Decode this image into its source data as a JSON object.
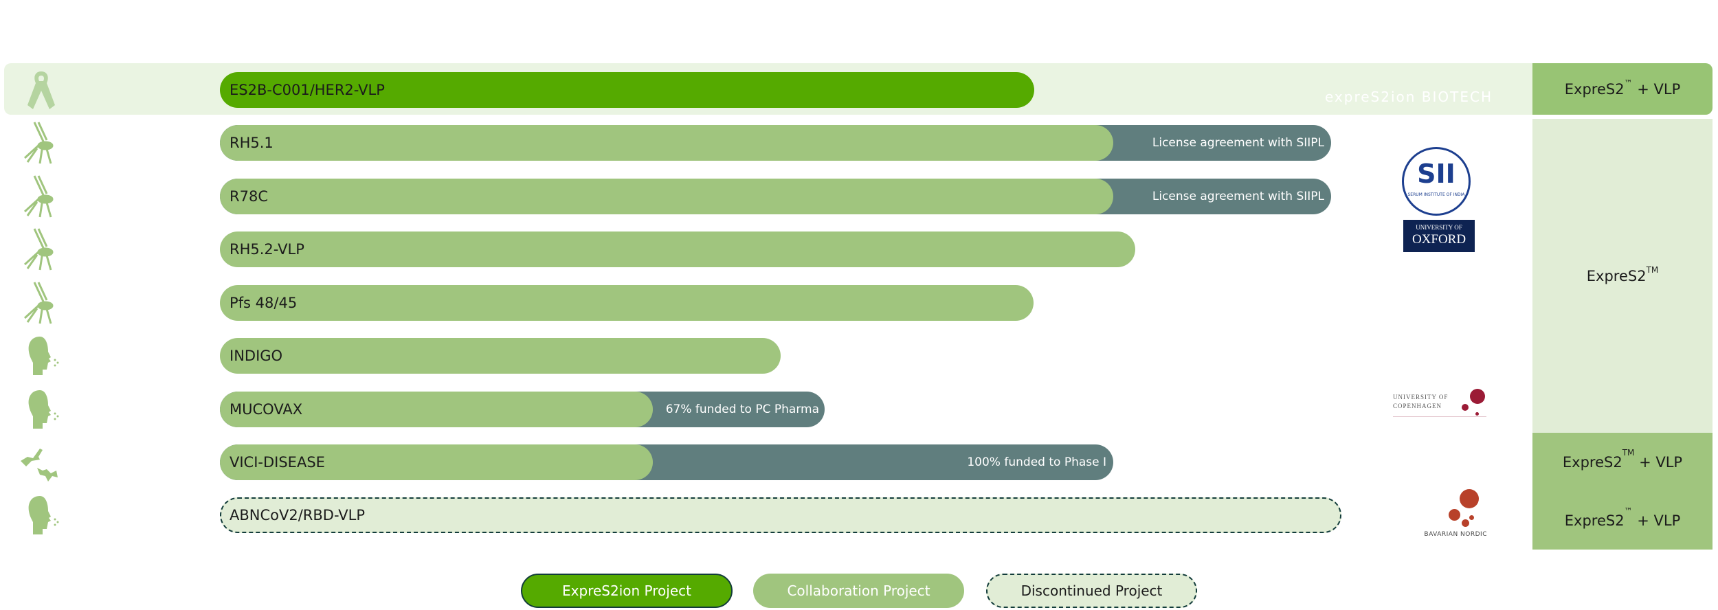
{
  "colors": {
    "own": "#55AA00",
    "collab": "#A0C57E",
    "note": "#607E7E",
    "discontinued": "#E1EDD6",
    "highlight": "#EAF4E2",
    "platform_vlp": "#98C474",
    "platform": "#E1EDD6"
  },
  "rows": [
    {
      "icon": "ribbon-icon",
      "label": "ES2B-C001/HER2-VLP",
      "type": "own"
    },
    {
      "icon": "mosquito-icon",
      "label": "RH5.1",
      "note": "License agreement with SIIPL",
      "type": "collab"
    },
    {
      "icon": "mosquito-icon",
      "label": "R78C",
      "note": "License agreement with SIIPL",
      "type": "collab"
    },
    {
      "icon": "mosquito-icon",
      "label": "RH5.2-VLP",
      "type": "collab"
    },
    {
      "icon": "mosquito-icon",
      "label": "Pfs 48/45",
      "type": "collab"
    },
    {
      "icon": "head-cough-icon",
      "label": "INDIGO",
      "type": "collab"
    },
    {
      "icon": "head-cough-icon",
      "label": "MUCOVAX",
      "note": "67% funded to PC Pharma",
      "type": "collab"
    },
    {
      "icon": "bats-icon",
      "label": "VICI-DISEASE",
      "note": "100% funded to Phase I",
      "type": "collab"
    },
    {
      "icon": "head-cough-icon",
      "label": "ABNCoV2/RBD-VLP",
      "type": "discontinued"
    }
  ],
  "platforms": [
    {
      "base": "ExpreS2",
      "tm": "™",
      "suffix": " + VLP"
    },
    {
      "base": "ExpreS2",
      "tm": "TM",
      "suffix": ""
    },
    {
      "base": "ExpreS2",
      "tm": "TM",
      "suffix": " + VLP"
    },
    {
      "base": "ExpreS2",
      "tm": "™",
      "suffix": " + VLP"
    }
  ],
  "partners": {
    "expres2ion": "expreS2ion BIOTECH",
    "sii": "SII",
    "sii_sub": "SERUM INSTITUTE OF INDIA",
    "oxford_top": "UNIVERSITY OF",
    "oxford": "OXFORD",
    "copenhagen_1": "UNIVERSITY OF",
    "copenhagen_2": "COPENHAGEN",
    "bavarian": "BAVARIAN NORDIC"
  },
  "legend": {
    "own": "ExpreS2ion Project",
    "collab": "Collaboration Project",
    "discontinued": "Discontinued Project"
  }
}
